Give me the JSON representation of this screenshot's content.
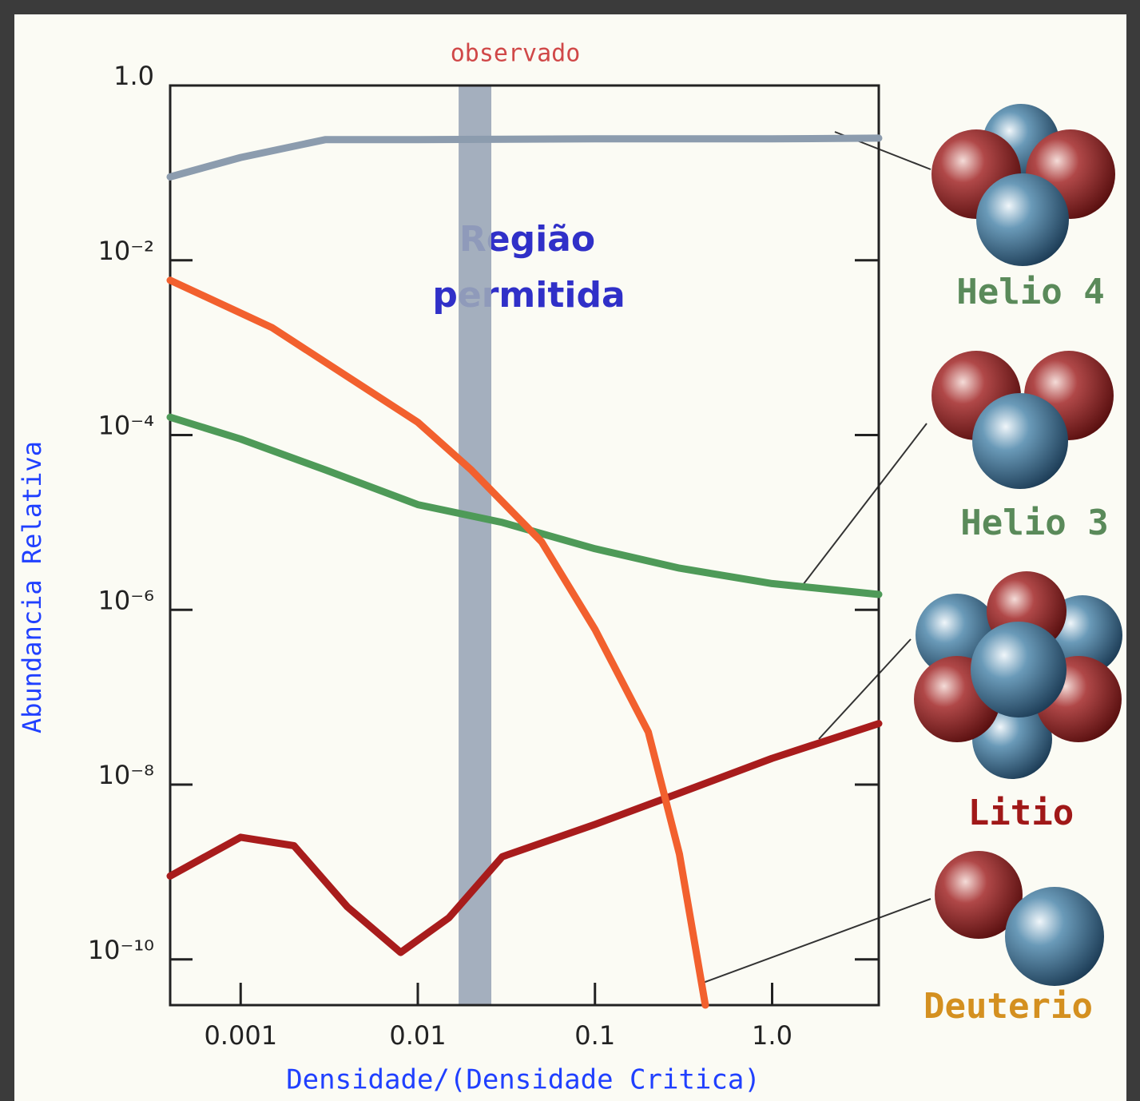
{
  "chart_data": {
    "type": "line",
    "title": "observado",
    "xlabel": "Densidade/(Densidade Critica)",
    "ylabel": "Abundancia Relativa",
    "annotation": [
      "Região",
      "permitida"
    ],
    "log_x": true,
    "log_y": true,
    "xlim": [
      0.0004,
      4
    ],
    "ylim": [
      3e-11,
      1
    ],
    "xticks": [
      0.001,
      0.01,
      0.1,
      {
        "value": 1,
        "label": "1.0"
      }
    ],
    "yticks": [
      {
        "value": 1,
        "label": "1.0"
      },
      {
        "value": 0.01,
        "label": "10⁻²"
      },
      {
        "value": 0.0001,
        "label": "10⁻⁴"
      },
      {
        "value": 1e-06,
        "label": "10⁻⁶"
      },
      {
        "value": 1e-08,
        "label": "10⁻⁸"
      },
      {
        "value": 1e-10,
        "label": "10⁻¹⁰"
      }
    ],
    "band": {
      "xlim": [
        0.017,
        0.026
      ],
      "color": "#9aa6b8"
    },
    "series": [
      {
        "name": "Helio 4",
        "color": "#8c9cae",
        "legend_color": "#5a8a5a",
        "x": [
          0.0004,
          0.001,
          0.003,
          0.01,
          0.1,
          1,
          4
        ],
        "values": [
          0.09,
          0.15,
          0.24,
          0.24,
          0.245,
          0.245,
          0.25
        ]
      },
      {
        "name": "Helio 3",
        "color": "#4e9a58",
        "legend_color": "#5a8a5a",
        "x": [
          0.0004,
          0.001,
          0.003,
          0.01,
          0.03,
          0.1,
          0.3,
          1,
          4
        ],
        "values": [
          0.00016,
          9e-05,
          4e-05,
          1.6e-05,
          1e-05,
          5e-06,
          3e-06,
          2e-06,
          1.5e-06
        ]
      },
      {
        "name": "Litio",
        "color": "#a81c1c",
        "legend_color": "#a01818",
        "x": [
          0.0004,
          0.001,
          0.002,
          0.004,
          0.008,
          0.015,
          0.03,
          0.1,
          0.3,
          1,
          4
        ],
        "values": [
          9e-10,
          2.5e-09,
          2e-09,
          4e-10,
          1.2e-10,
          3e-10,
          1.5e-09,
          3.5e-09,
          8e-09,
          2e-08,
          5e-08
        ]
      },
      {
        "name": "Deuterio",
        "color": "#f2602e",
        "legend_color": "#d49020",
        "x": [
          0.0004,
          0.0015,
          0.01,
          0.02,
          0.05,
          0.1,
          0.2,
          0.3,
          0.42
        ],
        "values": [
          0.0059,
          0.0017,
          0.00014,
          4e-05,
          6e-06,
          6e-07,
          4e-08,
          1.6e-09,
          3e-11
        ]
      }
    ]
  }
}
